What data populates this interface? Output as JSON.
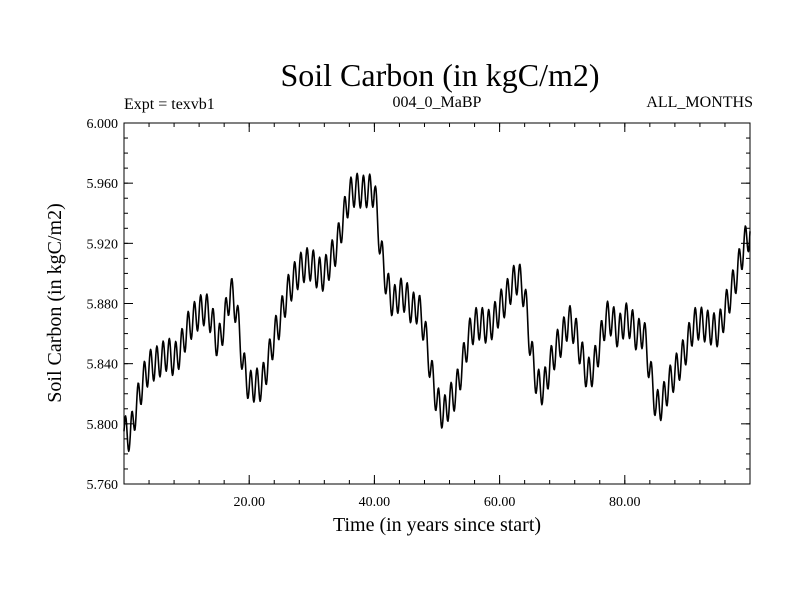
{
  "chart_data": {
    "type": "line",
    "title": "Soil Carbon (in kgC/m2)",
    "subtitle_left": "Expt = texvb1",
    "subtitle_center": "004_0_MaBP",
    "subtitle_right": "ALL_MONTHS",
    "xlabel": "Time (in years since start)",
    "ylabel": "Soil Carbon (in kgC/m2)",
    "xlim": [
      0.0,
      100.0
    ],
    "ylim": [
      5.76,
      6.0
    ],
    "xticks": [
      {
        "value": 20,
        "label": "20.00"
      },
      {
        "value": 40,
        "label": "40.00"
      },
      {
        "value": 60,
        "label": "60.00"
      },
      {
        "value": 80,
        "label": "80.00"
      }
    ],
    "yticks": [
      {
        "value": 5.76,
        "label": "5.760"
      },
      {
        "value": 5.8,
        "label": "5.800"
      },
      {
        "value": 5.84,
        "label": "5.840"
      },
      {
        "value": 5.88,
        "label": "5.880"
      },
      {
        "value": 5.92,
        "label": "5.920"
      },
      {
        "value": 5.96,
        "label": "5.960"
      },
      {
        "value": 6.0,
        "label": "6.000"
      }
    ],
    "x_minor_step": 4,
    "y_minor_step": 0.01,
    "grid": false,
    "legend": "none",
    "series": [
      {
        "name": "Soil Carbon",
        "seasonal_amplitude": 0.011,
        "samples_per_year": 12,
        "trend_x": [
          0,
          1,
          2,
          3,
          4,
          5,
          6,
          7,
          8,
          9,
          10,
          11,
          12,
          13,
          14,
          15,
          16,
          17,
          18,
          19,
          20,
          21,
          22,
          23,
          24,
          25,
          26,
          27,
          28,
          29,
          30,
          31,
          32,
          33,
          34,
          35,
          36,
          37,
          38,
          39,
          40,
          41,
          42,
          43,
          44,
          45,
          46,
          47,
          48,
          49,
          50,
          51,
          52,
          53,
          54,
          55,
          56,
          57,
          58,
          59,
          60,
          61,
          62,
          63,
          64,
          65,
          66,
          67,
          68,
          69,
          70,
          71,
          72,
          73,
          74,
          75,
          76,
          77,
          78,
          79,
          80,
          81,
          82,
          83,
          84,
          85,
          86,
          87,
          88,
          89,
          90,
          91,
          92,
          93,
          94,
          95,
          96,
          97,
          98,
          99,
          100
        ],
        "trend_y": [
          5.795,
          5.792,
          5.812,
          5.828,
          5.838,
          5.84,
          5.843,
          5.847,
          5.842,
          5.849,
          5.862,
          5.869,
          5.874,
          5.877,
          5.87,
          5.852,
          5.867,
          5.889,
          5.875,
          5.84,
          5.824,
          5.826,
          5.826,
          5.841,
          5.858,
          5.87,
          5.886,
          5.895,
          5.902,
          5.906,
          5.906,
          5.9,
          5.899,
          5.909,
          5.918,
          5.936,
          5.952,
          5.956,
          5.954,
          5.955,
          5.955,
          5.916,
          5.892,
          5.88,
          5.886,
          5.885,
          5.876,
          5.878,
          5.863,
          5.836,
          5.815,
          5.806,
          5.815,
          5.821,
          5.838,
          5.857,
          5.866,
          5.867,
          5.864,
          5.868,
          5.877,
          5.883,
          5.893,
          5.898,
          5.886,
          5.849,
          5.826,
          5.823,
          5.838,
          5.85,
          5.857,
          5.869,
          5.863,
          5.847,
          5.832,
          5.837,
          5.853,
          5.871,
          5.869,
          5.86,
          5.87,
          5.867,
          5.858,
          5.862,
          5.836,
          5.811,
          5.814,
          5.826,
          5.834,
          5.842,
          5.853,
          5.866,
          5.867,
          5.865,
          5.863,
          5.862,
          5.875,
          5.888,
          5.901,
          5.918,
          5.928
        ]
      }
    ]
  }
}
